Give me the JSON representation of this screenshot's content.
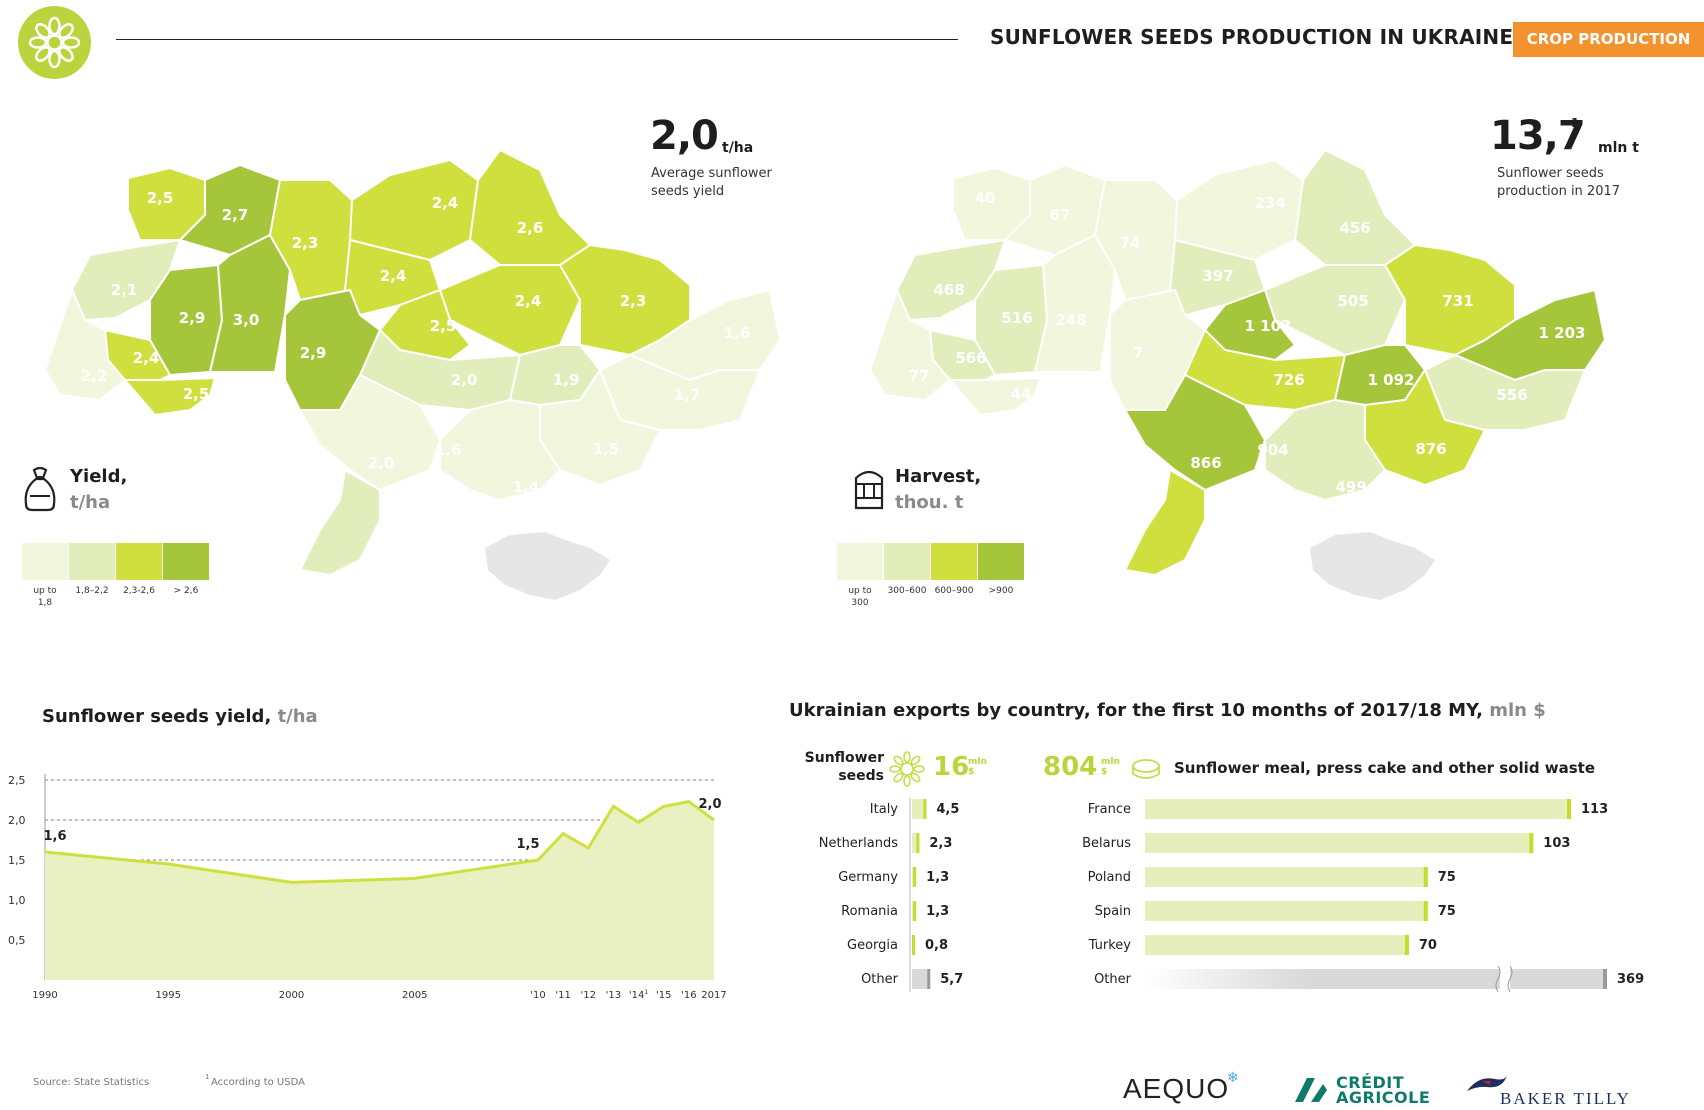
{
  "header": {
    "title": "SUNFLOWER SEEDS PRODUCTION IN UKRAINE",
    "section_badge": "CROP PRODUCTION",
    "colors": {
      "brand_green": "#b9d43d",
      "badge_orange": "#f3922e"
    },
    "logo_icon": "sunflower-logo-icon"
  },
  "yield_map": {
    "stat_value": "2,0",
    "stat_unit": "t/ha",
    "stat_caption_line1": "Average sunflower",
    "stat_caption_line2": "seeds yield",
    "legend_title": "Yield,",
    "legend_unit": "t/ha",
    "legend_icon": "sack-icon",
    "legend": [
      {
        "label_line1": "up to",
        "label_line2": "1,8",
        "color": "#f1f6dc"
      },
      {
        "label_line1": "1,8–2,2",
        "label_line2": "",
        "color": "#e2edbc"
      },
      {
        "label_line1": "2,3-2,6",
        "label_line2": "",
        "color": "#cfe03e"
      },
      {
        "label_line1": "> 2,6",
        "label_line2": "",
        "color": "#a5c63b"
      }
    ],
    "regions": [
      "2,5",
      "2,7",
      "2,1",
      "2,9",
      "3,0",
      "2,3",
      "2,4",
      "2,6",
      "2,4",
      "2,4",
      "2,3",
      "2,5",
      "2,4",
      "2,9",
      "2,2",
      "2,5",
      "2,0",
      "1,9",
      "1,6",
      "1,7",
      "1,6",
      "1,5",
      "2,0",
      "1,4"
    ]
  },
  "harvest_map": {
    "stat_value": "13,7",
    "stat_sup": "1",
    "stat_unit": "mln t",
    "stat_caption_line1": "Sunflower seeds",
    "stat_caption_line2": "production in 2017",
    "legend_title": "Harvest,",
    "legend_unit": "thou. t",
    "legend_icon": "grain-silo-icon",
    "legend": [
      {
        "label_line1": "up to",
        "label_line2": "300",
        "color": "#f1f6dc"
      },
      {
        "label_line1": "300–600",
        "label_line2": "",
        "color": "#e2edbc"
      },
      {
        "label_line1": "600–900",
        "label_line2": "",
        "color": "#cfe03e"
      },
      {
        "label_line1": ">900",
        "label_line2": "",
        "color": "#a5c63b"
      }
    ],
    "regions": [
      "40",
      "67",
      "468",
      "516",
      "248",
      "74",
      "234",
      "456",
      "397",
      "505",
      "731",
      "1 103",
      "566",
      "7",
      "77",
      "44",
      "726",
      "1 092",
      "1 203",
      "556",
      "904",
      "876",
      "866",
      "499"
    ]
  },
  "yield_chart": {
    "title": "Sunflower seeds yield,",
    "title_unit": "t/ha"
  },
  "exports": {
    "title": "Ukrainian exports by country, for the first 10 months of 2017/18 MY,",
    "title_unit": "mln $",
    "seeds": {
      "label_line1": "Sunflower",
      "label_line2": "seeds",
      "total": "16",
      "unit_top": "mln",
      "unit_bottom": "$",
      "icon": "sunflower-outline-icon"
    },
    "meal": {
      "label": "Sunflower meal, press cake and other solid waste",
      "total": "804",
      "unit_top": "mln",
      "unit_bottom": "$",
      "icon": "meal-pellet-icon"
    }
  },
  "footer": {
    "source": "Source: State Statistics",
    "footnote_sup": "1",
    "footnote": "According to USDA",
    "brands": [
      "AEQUO",
      "CRÉDIT",
      "AGRICOLE",
      "BAKER TILLY"
    ]
  },
  "chart_data": [
    {
      "type": "area",
      "title": "Sunflower seeds yield, t/ha",
      "x": [
        "1990",
        "1995",
        "2000",
        "2005",
        "'10",
        "'11",
        "'12",
        "'13",
        "'14",
        "'15",
        "'16",
        "2017"
      ],
      "x_numeric": [
        1990,
        1995,
        2000,
        2005,
        2010,
        2011,
        2012,
        2013,
        2014,
        2015,
        2016,
        2017
      ],
      "x_sup": {
        "'14": "1"
      },
      "values": [
        1.6,
        1.45,
        1.22,
        1.27,
        1.5,
        1.83,
        1.65,
        2.17,
        1.97,
        2.17,
        2.23,
        2.0
      ],
      "data_labels": [
        {
          "x": 1990,
          "text": "1,6"
        },
        {
          "x": 2010,
          "text": "1,5"
        },
        {
          "x": 2017,
          "text": "2,0"
        }
      ],
      "yticks": [
        "0,5",
        "1,0",
        "1,5",
        "2,0",
        "2,5"
      ],
      "ylim": [
        0,
        2.5
      ],
      "grid": true,
      "color": "#cfe03e",
      "fill": "#e9f1c2"
    },
    {
      "type": "bar",
      "orientation": "horizontal",
      "title": "Sunflower seeds",
      "categories": [
        "Italy",
        "Netherlands",
        "Germany",
        "Romania",
        "Georgia",
        "Other"
      ],
      "values": [
        4.5,
        2.3,
        1.3,
        1.3,
        0.8,
        5.7
      ],
      "labels": [
        "4,5",
        "2,3",
        "1,3",
        "1,3",
        "0,8",
        "5,7"
      ],
      "unit": "mln $"
    },
    {
      "type": "bar",
      "orientation": "horizontal",
      "title": "Sunflower meal, press cake and other solid waste",
      "categories": [
        "France",
        "Belarus",
        "Poland",
        "Spain",
        "Turkey",
        "Other"
      ],
      "values": [
        113,
        103,
        75,
        75,
        70,
        369
      ],
      "labels": [
        "113",
        "103",
        "75",
        "75",
        "70",
        "369"
      ],
      "unit": "mln $",
      "axis_break_on": [
        "Other"
      ]
    }
  ]
}
